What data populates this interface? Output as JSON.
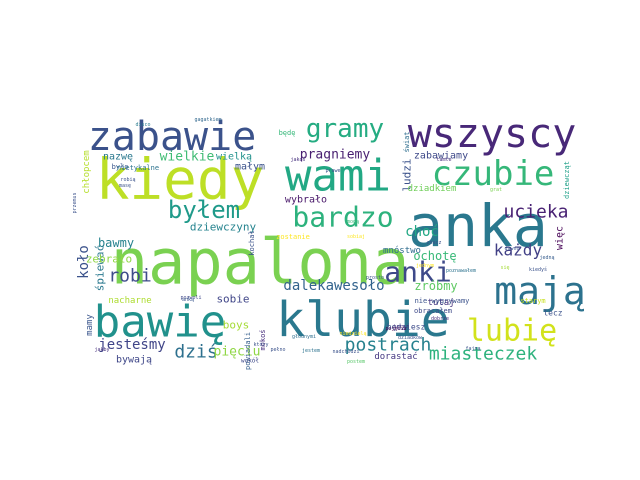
{
  "words": [
    {
      "text": "napalona",
      "color": "#7ad151"
    },
    {
      "text": "kiedy",
      "color": "#bddf26"
    },
    {
      "text": "anka",
      "color": "#2a788e"
    },
    {
      "text": "bawię",
      "color": "#21918c"
    },
    {
      "text": "klubie",
      "color": "#2a788e"
    },
    {
      "text": "wami",
      "color": "#22a884"
    },
    {
      "text": "zabawie",
      "color": "#3b528b"
    },
    {
      "text": "wszyscy",
      "color": "#482878"
    },
    {
      "text": "mają",
      "color": "#2c728e"
    },
    {
      "text": "czubie",
      "color": "#35b779"
    },
    {
      "text": "lubię",
      "color": "#d2e21b"
    },
    {
      "text": "bardzo",
      "color": "#2db27d"
    },
    {
      "text": "gramy",
      "color": "#25ac82"
    },
    {
      "text": "anki",
      "color": "#3e4989"
    },
    {
      "text": "byłem",
      "color": "#1f9a8a"
    },
    {
      "text": "postrach",
      "color": "#26818e"
    },
    {
      "text": "miasteczek",
      "color": "#2db27d"
    },
    {
      "text": "ucieka",
      "color": "#482173"
    },
    {
      "text": "robi",
      "color": "#3e4c8a"
    },
    {
      "text": "dziś",
      "color": "#2d708e"
    },
    {
      "text": "każdy",
      "color": "#424086"
    },
    {
      "text": "pragniemy",
      "color": "#481f70"
    },
    {
      "text": "jesteśmy",
      "color": "#404588"
    },
    {
      "text": "dalekawesoło",
      "color": "#33638d"
    },
    {
      "text": "pięciu",
      "color": "#8fd744"
    },
    {
      "text": "choć",
      "color": "#22a884"
    },
    {
      "text": "bawmy",
      "color": "#26828e"
    },
    {
      "text": "wielkie",
      "color": "#3fbc73"
    },
    {
      "text": "zróbmy",
      "color": "#5ec962"
    },
    {
      "text": "koło",
      "color": "#3b528b"
    },
    {
      "text": "śpiewać",
      "color": "#2a788e"
    },
    {
      "text": "zebrało",
      "color": "#8fd744"
    },
    {
      "text": "ochotę",
      "color": "#38b977"
    },
    {
      "text": "sobie",
      "color": "#404688"
    },
    {
      "text": "boys",
      "color": "#a5db36"
    },
    {
      "text": "dziewczyny",
      "color": "#25838e"
    },
    {
      "text": "ludzi",
      "color": "#3b528b"
    },
    {
      "text": "bywają",
      "color": "#3f4788"
    },
    {
      "text": "wybrało",
      "color": "#481769"
    },
    {
      "text": "nazwę",
      "color": "#2a788e"
    },
    {
      "text": "wielką",
      "color": "#21918c"
    },
    {
      "text": "małym",
      "color": "#3b528b"
    },
    {
      "text": "zabawiamy",
      "color": "#3e4989"
    },
    {
      "text": "więc",
      "color": "#440154"
    },
    {
      "text": "nacharne",
      "color": "#addc30"
    },
    {
      "text": "mamy",
      "color": "#39558c"
    },
    {
      "text": "dorastać",
      "color": "#453781"
    },
    {
      "text": "dziadkiem",
      "color": "#6ece58"
    },
    {
      "text": "tutaj",
      "color": "#46327e"
    },
    {
      "text": "mnóstwo",
      "color": "#2f6c8e"
    },
    {
      "text": "lecz",
      "color": "#3b528b"
    },
    {
      "text": "będziesz",
      "color": "#3e4c8a"
    },
    {
      "text": "chłopcem",
      "color": "#b5de2b"
    },
    {
      "text": "było",
      "color": "#39568c"
    },
    {
      "text": "nietykalne",
      "color": "#2c728e"
    },
    {
      "text": "kochał",
      "color": "#3b528b"
    },
    {
      "text": "zostanie",
      "color": "#fde725"
    },
    {
      "text": "powiadali",
      "color": "#355f8d"
    },
    {
      "text": "mokoś",
      "color": "#472f7d"
    },
    {
      "text": "obracałem",
      "color": "#3e4a89"
    },
    {
      "text": "starym",
      "color": "#c8e020"
    },
    {
      "text": "wokół",
      "color": "#3e4989"
    },
    {
      "text": "będę",
      "color": "#35b779"
    },
    {
      "text": "świat",
      "color": "#2e6e8e"
    },
    {
      "text": "dziewcząt",
      "color": "#1fa088"
    },
    {
      "text": "gagatkiem",
      "color": "#31688e"
    },
    {
      "text": "disco",
      "color": "#287c8e"
    },
    {
      "text": "przemus",
      "color": "#3b528b"
    },
    {
      "text": "jedną",
      "color": "#365c8d"
    },
    {
      "text": "poznawałem",
      "color": "#2c728e"
    },
    {
      "text": "masę",
      "color": "#3b528b"
    },
    {
      "text": "pozwoli",
      "color": "#3f4788"
    },
    {
      "text": "postem",
      "color": "#56c667"
    },
    {
      "text": "nadchodzi",
      "color": "#3b528b"
    },
    {
      "text": "pojęcia",
      "color": "#440154"
    },
    {
      "text": "głodnymi",
      "color": "#2e6e8e"
    },
    {
      "text": "tamte",
      "color": "#46307e"
    },
    {
      "text": "prawe",
      "color": "#3b528b"
    },
    {
      "text": "sobiaj",
      "color": "#fde725"
    },
    {
      "text": "grat",
      "color": "#7ad151"
    },
    {
      "text": "jakoś",
      "color": "#46307e"
    },
    {
      "text": "niedzielą",
      "color": "#fde725"
    },
    {
      "text": "znacz",
      "color": "#3b528b"
    },
    {
      "text": "który",
      "color": "#3b528b"
    },
    {
      "text": "anką",
      "color": "#39568c"
    },
    {
      "text": "jakby",
      "color": "#46307e"
    },
    {
      "text": "jestem",
      "color": "#2c728e"
    },
    {
      "text": "pełno",
      "color": "#3b528b"
    },
    {
      "text": "mogą",
      "color": "#35b779"
    },
    {
      "text": "robią",
      "color": "#3b528b"
    },
    {
      "text": "dobrze",
      "color": "#46307e"
    },
    {
      "text": "nie wygrywamy",
      "color": "#3b528b"
    },
    {
      "text": "się",
      "color": "#a5db36"
    },
    {
      "text": "teraz",
      "color": "#46307e"
    },
    {
      "text": "prosto",
      "color": "#3b528b"
    },
    {
      "text": "dziadków",
      "color": "#3b528b"
    },
    {
      "text": "jednym",
      "color": "#fde725"
    },
    {
      "text": "kiedyś",
      "color": "#3b528b"
    },
    {
      "text": "fajna",
      "color": "#3b528b"
    },
    {
      "text": "dawno",
      "color": "#3b528b"
    }
  ]
}
